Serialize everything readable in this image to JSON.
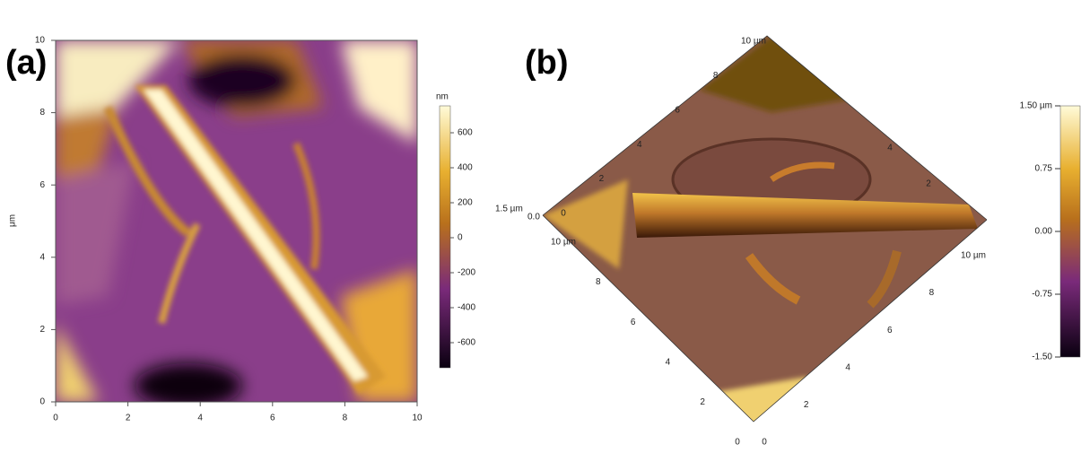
{
  "panel_a": {
    "label": "(a)",
    "x_ticks": [
      "0",
      "2",
      "4",
      "6",
      "8",
      "10"
    ],
    "y_ticks": [
      "0",
      "2",
      "4",
      "6",
      "8",
      "10"
    ],
    "y_axis_label": "μm",
    "colorbar": {
      "unit": "nm",
      "ticks": [
        "600",
        "400",
        "200",
        "0",
        "-200",
        "-400",
        "-600"
      ]
    }
  },
  "panel_b": {
    "label": "(b)",
    "z_label": "1.5 µm",
    "z_zero": "0.0",
    "left_axis": [
      "10 µm",
      "8",
      "6",
      "4",
      "2",
      "0"
    ],
    "right_axis": [
      "0",
      "2",
      "4",
      "6",
      "8",
      "10 µm"
    ],
    "top_left_axis": [
      "0",
      "2",
      "4",
      "6",
      "8",
      "10 µm"
    ],
    "top_right_axis": [
      "2",
      "4"
    ],
    "colorbar": {
      "ticks": [
        "1.50 µm",
        "0.75",
        "0.00",
        "-0.75",
        "-1.50"
      ]
    }
  }
}
